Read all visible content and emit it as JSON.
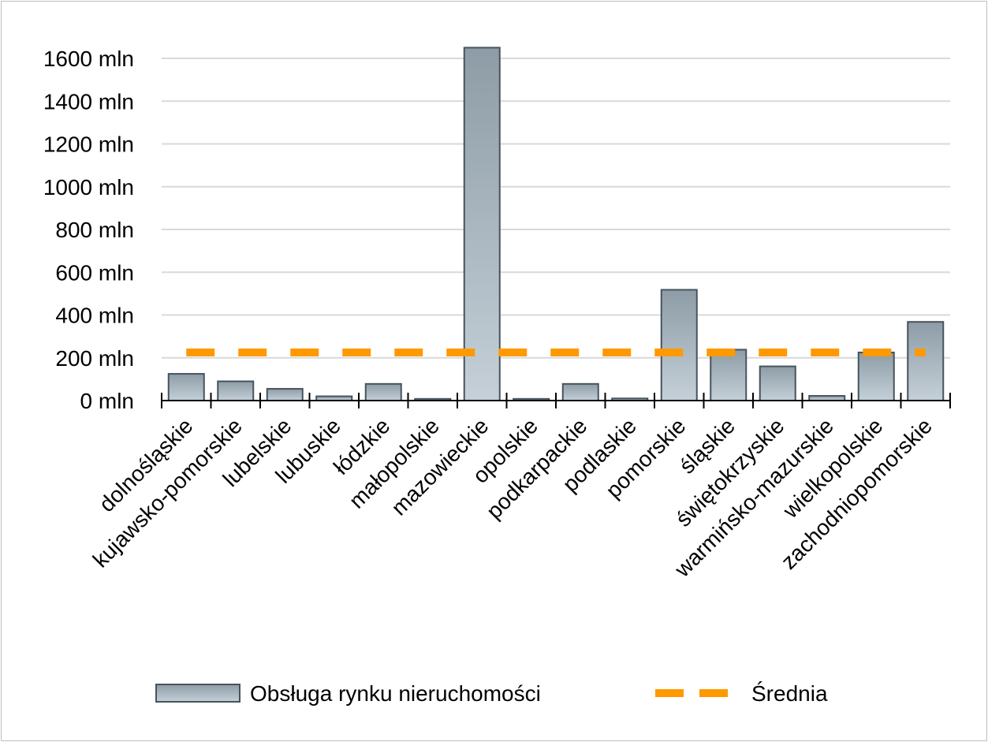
{
  "chart_data": {
    "type": "bar",
    "categories": [
      "dolnośląskie",
      "kujawsko-pomorskie",
      "lubelskie",
      "lubuskie",
      "łódzkie",
      "małopolskie",
      "mazowieckie",
      "opolskie",
      "podkarpackie",
      "podlaskie",
      "pomorskie",
      "śląskie",
      "świętokrzyskie",
      "warmińsko-mazurskie",
      "wielkopolskie",
      "zachodniopomorskie"
    ],
    "series": [
      {
        "name": "Obsługa rynku nieruchomości",
        "type": "bar",
        "values": [
          125,
          90,
          55,
          20,
          78,
          8,
          1650,
          8,
          78,
          10,
          518,
          238,
          160,
          22,
          225,
          368
        ],
        "color": "#8f9fa8"
      },
      {
        "name": "Średnia",
        "type": "line",
        "style": "dashed",
        "value": 225,
        "color": "#ff9900"
      }
    ],
    "yaxis": {
      "ticks": [
        0,
        200,
        400,
        600,
        800,
        1000,
        1200,
        1400,
        1600
      ],
      "tick_labels": [
        "0 mln",
        "200 mln",
        "400 mln",
        "600 mln",
        "800 mln",
        "1000 mln",
        "1200 mln",
        "1400 mln",
        "1600 mln"
      ],
      "ylim": [
        0,
        1600
      ]
    },
    "title": "",
    "xlabel": "",
    "ylabel": "",
    "grid": true,
    "legend_position": "bottom"
  }
}
